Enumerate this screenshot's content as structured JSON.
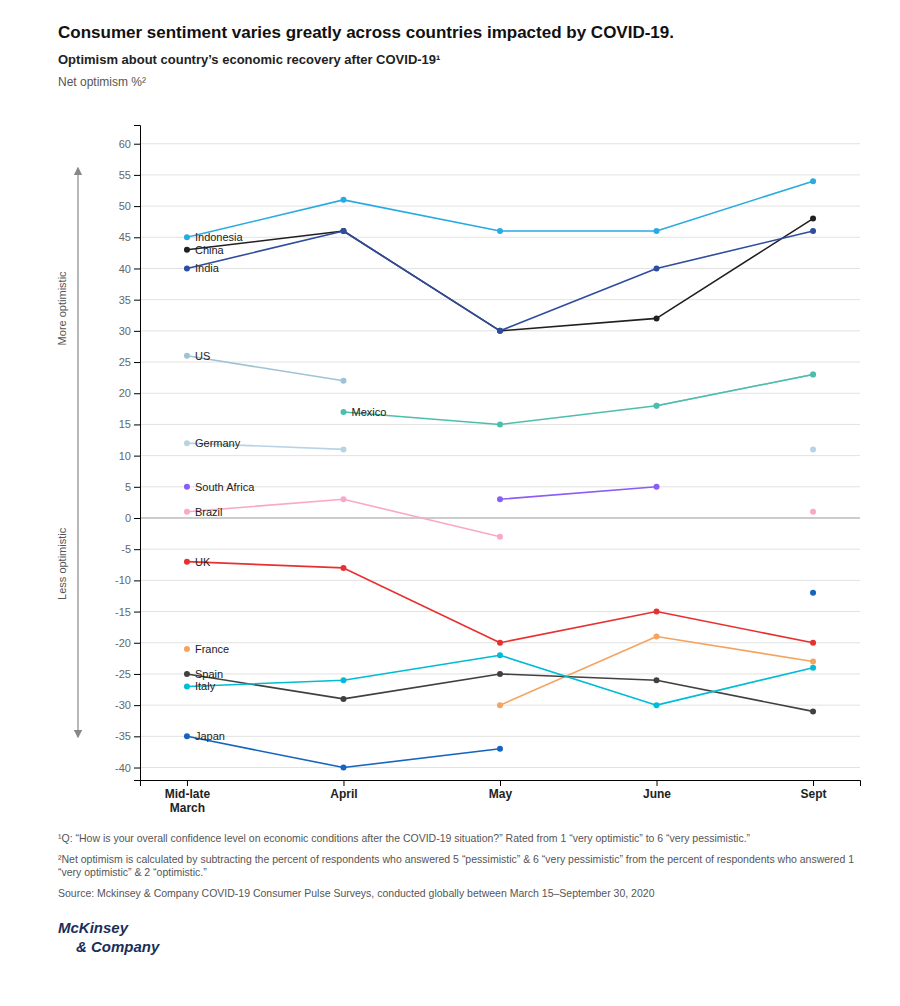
{
  "chart_data": {
    "type": "line",
    "title": "Consumer sentiment varies greatly across countries impacted by COVID-19.",
    "subtitle": "Optimism about country’s economic recovery after COVID-19¹",
    "ylabel": "Net optimism %²",
    "annotations": [
      "More optimistic",
      "Less optimistic"
    ],
    "footnotes": [
      "¹Q: “How is your overall confidence level on economic conditions after the COVID-19 situation?” Rated from 1 “very optimistic” to 6 “very pessimistic.”",
      "²Net optimism is calculated by subtracting the percent of respondents who answered 5 “pessimistic” & 6 “very pessimistic” from the percent of respondents who answered 1 “very optimistic” & 2 “optimistic.”",
      "Source: Mckinsey & Company COVID-19 Consumer Pulse Surveys, conducted globally between March 15–September 30, 2020"
    ],
    "logo": [
      "McKinsey",
      "& Company"
    ],
    "categories": [
      "Mid-late\nMarch",
      "April",
      "May",
      "June",
      "Sept"
    ],
    "marker": "circle",
    "grid": true,
    "ylim": [
      -42,
      63
    ],
    "yticks": [
      -40,
      -35,
      -30,
      -25,
      -20,
      -15,
      -10,
      -5,
      0,
      5,
      10,
      15,
      20,
      25,
      30,
      35,
      40,
      45,
      50,
      55,
      60
    ],
    "series": [
      {
        "name": "Indonesia",
        "color": "#29ABE2",
        "values": [
          45,
          51,
          46,
          46,
          54
        ]
      },
      {
        "name": "China",
        "color": "#231F20",
        "values": [
          43,
          46,
          30,
          32,
          48
        ]
      },
      {
        "name": "India",
        "color": "#2E4DA0",
        "values": [
          40,
          46,
          30,
          40,
          46
        ]
      },
      {
        "name": "US",
        "color": "#9DC3D4",
        "values": [
          26,
          22,
          null,
          18,
          23
        ]
      },
      {
        "name": "Mexico",
        "color": "#4BBFAD",
        "values": [
          null,
          17,
          15,
          18,
          23
        ]
      },
      {
        "name": "Germany",
        "color": "#B8D4E3",
        "values": [
          12,
          11,
          null,
          null,
          11
        ]
      },
      {
        "name": "South Africa",
        "color": "#8B5CF6",
        "values": [
          5,
          null,
          3,
          5,
          null
        ]
      },
      {
        "name": "Brazil",
        "color": "#F9A8C9",
        "values": [
          1,
          3,
          -3,
          null,
          1
        ]
      },
      {
        "name": "UK",
        "color": "#E83030",
        "values": [
          -7,
          -8,
          -20,
          -15,
          -20
        ]
      },
      {
        "name": "France",
        "color": "#F4A460",
        "values": [
          -21,
          null,
          -30,
          -19,
          -23
        ]
      },
      {
        "name": "Spain",
        "color": "#404040",
        "values": [
          -25,
          -29,
          -25,
          -26,
          -31
        ]
      },
      {
        "name": "Italy",
        "color": "#00BCD4",
        "values": [
          -27,
          -26,
          -22,
          -30,
          -24
        ]
      },
      {
        "name": "Japan",
        "color": "#1565C0",
        "values": [
          -35,
          -40,
          -37,
          null,
          -12
        ]
      }
    ]
  }
}
